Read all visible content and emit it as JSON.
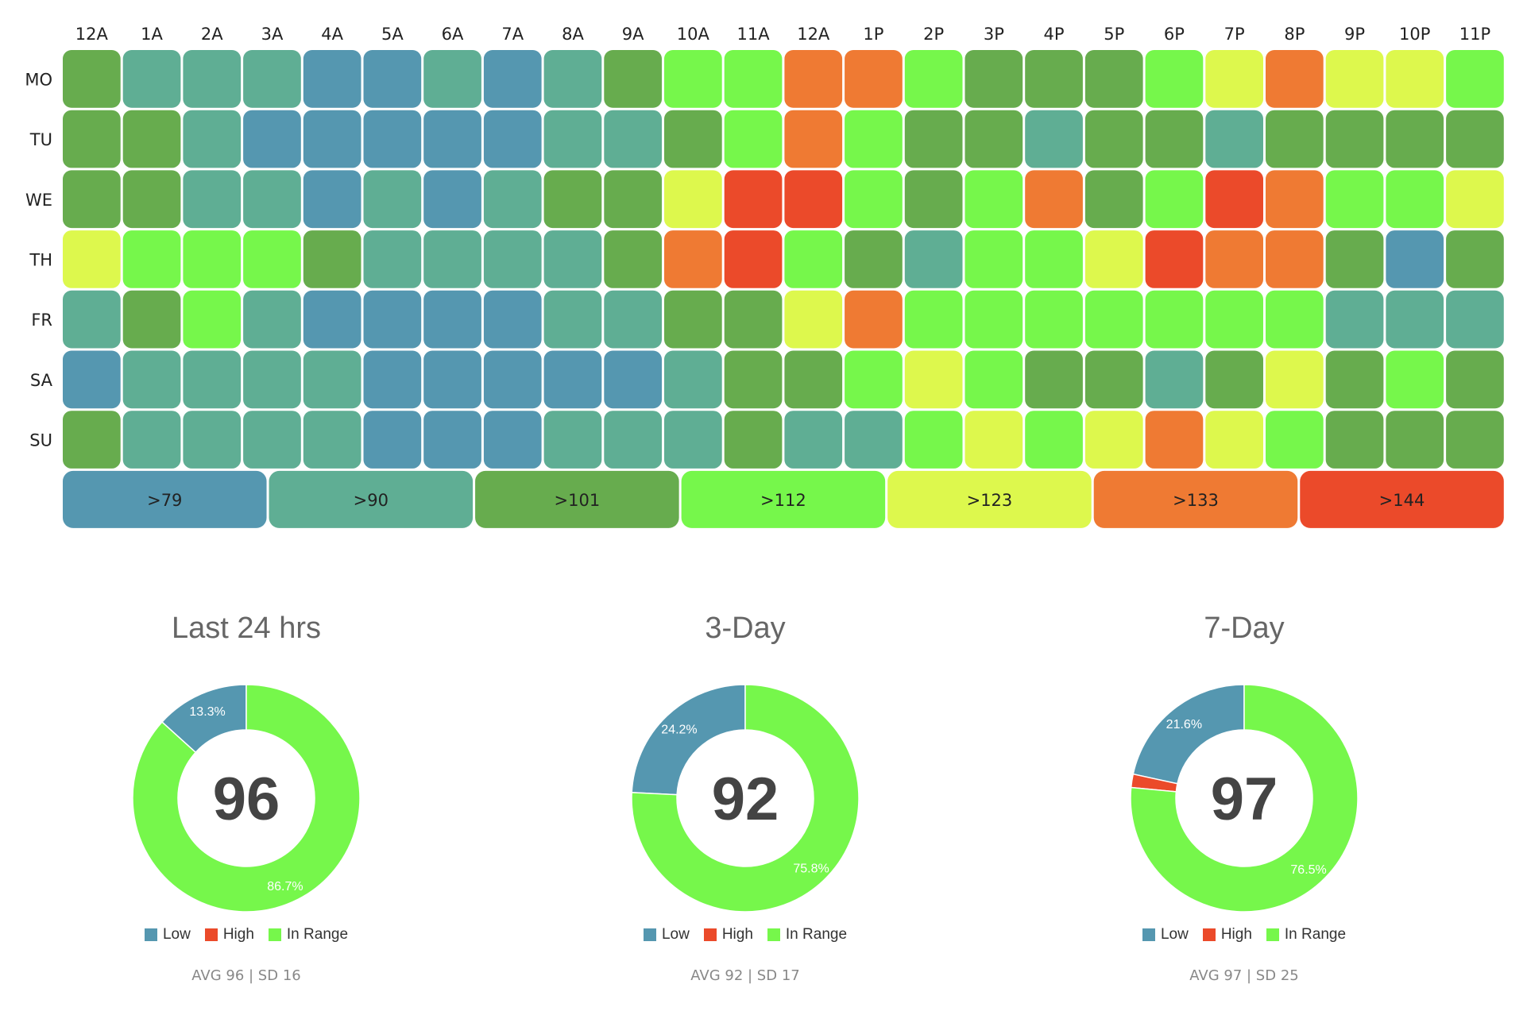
{
  "colors": {
    "bins": [
      "#5597B0",
      "#5FAE94",
      "#67AC4E",
      "#76F74B",
      "#DDF84D",
      "#EF7A33",
      "#EB4A2A"
    ],
    "low": "#5597B0",
    "high": "#EB4A2A",
    "in_range": "#76F74B"
  },
  "chart_data": [
    {
      "type": "heatmap",
      "hours": [
        "12A",
        "1A",
        "2A",
        "3A",
        "4A",
        "5A",
        "6A",
        "7A",
        "8A",
        "9A",
        "10A",
        "11A",
        "12A",
        "1P",
        "2P",
        "3P",
        "4P",
        "5P",
        "6P",
        "7P",
        "8P",
        "9P",
        "10P",
        "11P"
      ],
      "days": [
        "MO",
        "TU",
        "WE",
        "TH",
        "FR",
        "SA",
        "SU"
      ],
      "bin_labels": [
        ">79",
        ">90",
        ">101",
        ">112",
        ">123",
        ">133",
        ">144"
      ],
      "cells": [
        [
          2,
          1,
          1,
          1,
          0,
          0,
          1,
          0,
          1,
          2,
          3,
          3,
          5,
          5,
          3,
          2,
          2,
          2,
          3,
          4,
          5,
          4,
          4,
          3
        ],
        [
          2,
          2,
          1,
          0,
          0,
          0,
          0,
          0,
          1,
          1,
          2,
          3,
          5,
          3,
          2,
          2,
          1,
          2,
          2,
          1,
          2,
          2,
          2,
          2
        ],
        [
          2,
          2,
          1,
          1,
          0,
          1,
          0,
          1,
          2,
          2,
          4,
          6,
          6,
          3,
          2,
          3,
          5,
          2,
          3,
          6,
          5,
          3,
          3,
          4
        ],
        [
          4,
          3,
          3,
          3,
          2,
          1,
          1,
          1,
          1,
          2,
          5,
          6,
          3,
          2,
          1,
          3,
          3,
          4,
          6,
          5,
          5,
          2,
          0,
          2
        ],
        [
          1,
          2,
          3,
          1,
          0,
          0,
          0,
          0,
          1,
          1,
          2,
          2,
          4,
          5,
          3,
          3,
          3,
          3,
          3,
          3,
          3,
          1,
          1,
          1
        ],
        [
          0,
          1,
          1,
          1,
          1,
          0,
          0,
          0,
          0,
          0,
          1,
          2,
          2,
          3,
          4,
          3,
          2,
          2,
          1,
          2,
          4,
          2,
          3,
          2
        ],
        [
          2,
          1,
          1,
          1,
          1,
          0,
          0,
          0,
          1,
          1,
          1,
          2,
          1,
          1,
          3,
          4,
          3,
          4,
          5,
          4,
          3,
          2,
          2,
          2
        ]
      ]
    },
    {
      "type": "pie",
      "title": "Last 24 hrs",
      "center_value": "96",
      "slices": [
        {
          "name": "Low",
          "value": 13.3,
          "label": "13.3%"
        },
        {
          "name": "High",
          "value": 0,
          "label": ""
        },
        {
          "name": "In Range",
          "value": 86.7,
          "label": "86.7%"
        }
      ],
      "stats": "AVG 96 | SD 16"
    },
    {
      "type": "pie",
      "title": "3-Day",
      "center_value": "92",
      "slices": [
        {
          "name": "Low",
          "value": 24.2,
          "label": "24.2%"
        },
        {
          "name": "High",
          "value": 0,
          "label": ""
        },
        {
          "name": "In Range",
          "value": 75.8,
          "label": "75.8%"
        }
      ],
      "stats": "AVG 92 | SD 17"
    },
    {
      "type": "pie",
      "title": "7-Day",
      "center_value": "97",
      "slices": [
        {
          "name": "Low",
          "value": 21.6,
          "label": "21.6%"
        },
        {
          "name": "High",
          "value": 1.9,
          "label": ""
        },
        {
          "name": "In Range",
          "value": 76.5,
          "label": "76.5%"
        }
      ],
      "stats": "AVG 97 | SD 25"
    }
  ],
  "legend_labels": {
    "low": "Low",
    "high": "High",
    "in_range": "In Range"
  }
}
